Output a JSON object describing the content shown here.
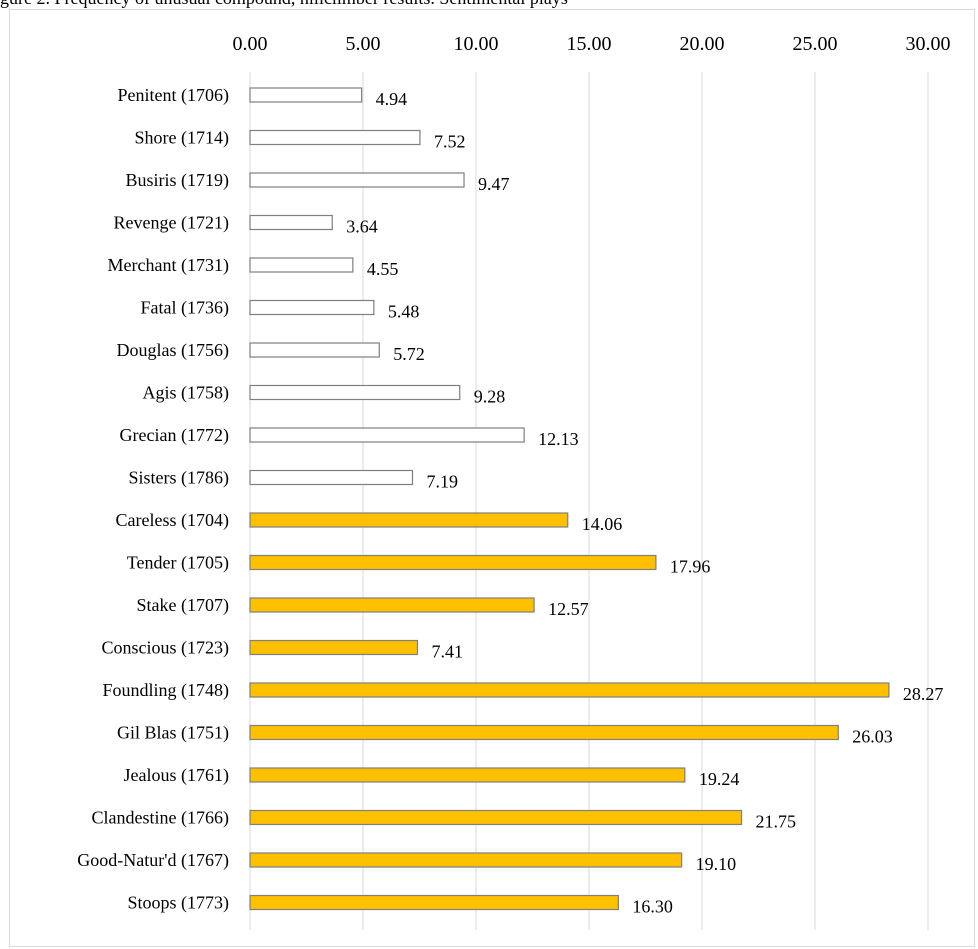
{
  "header": {
    "title": "gure 2. Frequency of unusual compound, hillclimber results. Sentimental plays"
  },
  "chart_data": {
    "type": "bar",
    "orientation": "horizontal",
    "title": "gure 2. Frequency of unusual compound, hillclimber results. Sentimental plays",
    "xlabel": "",
    "ylabel": "",
    "xlim": [
      0,
      30
    ],
    "ticks": [
      "0.00",
      "5.00",
      "10.00",
      "15.00",
      "20.00",
      "25.00",
      "30.00"
    ],
    "tick_values": [
      0,
      5,
      10,
      15,
      20,
      25,
      30
    ],
    "axis_position": "top",
    "grid": true,
    "categories": [
      "Penitent (1706)",
      "Shore (1714)",
      "Busiris (1719)",
      "Revenge (1721)",
      "Merchant (1731)",
      "Fatal (1736)",
      "Douglas (1756)",
      "Agis (1758)",
      "Grecian (1772)",
      "Sisters (1786)",
      "Careless (1704)",
      "Tender (1705)",
      "Stake (1707)",
      "Conscious (1723)",
      "Foundling (1748)",
      "Gil Blas (1751)",
      "Jealous (1761)",
      "Clandestine (1766)",
      "Good-Natur'd (1767)",
      "Stoops (1773)"
    ],
    "values": [
      4.94,
      7.52,
      9.47,
      3.64,
      4.55,
      5.48,
      5.72,
      9.28,
      12.13,
      7.19,
      14.06,
      17.96,
      12.57,
      7.41,
      28.27,
      26.03,
      19.24,
      21.75,
      19.1,
      16.3
    ],
    "value_labels": [
      "4.94",
      "7.52",
      "9.47",
      "3.64",
      "4.55",
      "5.48",
      "5.72",
      "9.28",
      "12.13",
      "7.19",
      "14.06",
      "17.96",
      "12.57",
      "7.41",
      "28.27",
      "26.03",
      "19.24",
      "21.75",
      "19.10",
      "16.30"
    ],
    "bar_fill": [
      "#ffffff",
      "#ffffff",
      "#ffffff",
      "#ffffff",
      "#ffffff",
      "#ffffff",
      "#ffffff",
      "#ffffff",
      "#ffffff",
      "#ffffff",
      "#ffc000",
      "#ffc000",
      "#ffc000",
      "#ffc000",
      "#ffc000",
      "#ffc000",
      "#ffc000",
      "#ffc000",
      "#ffc000",
      "#ffc000"
    ],
    "bar_stroke": "#7f7f7f",
    "grid_color": "#d9d9d9"
  }
}
